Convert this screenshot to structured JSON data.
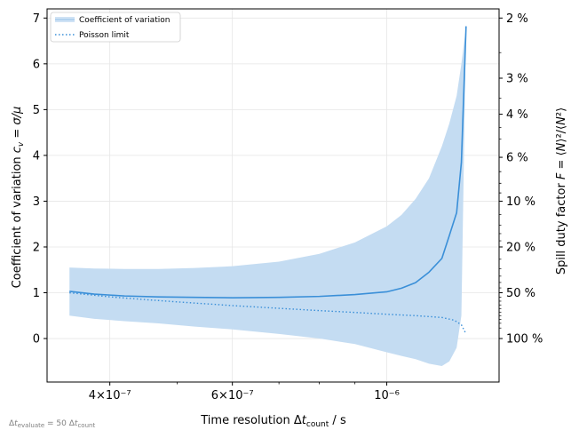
{
  "chart_data": {
    "type": "line",
    "xscale": "log",
    "xlim": [
      3.25e-07,
      1.45e-06
    ],
    "ylim": [
      -0.95,
      7.2
    ],
    "xlabel": "Time resolution Δt_count / s",
    "ylabel": "Coefficient of variation c_v = σ/μ",
    "ylabel2": "Spill duty factor F = ⟨N⟩²/⟨N²⟩",
    "footnote": "Δt_evaluate = 50 Δt_count",
    "x_ticks": [
      {
        "value": 4e-07,
        "label": "4×10⁻⁷"
      },
      {
        "value": 6e-07,
        "label": "6×10⁻⁷"
      },
      {
        "value": 1e-06,
        "label": "10⁻⁶"
      }
    ],
    "y_ticks": [
      0,
      1,
      2,
      3,
      4,
      5,
      6,
      7
    ],
    "y2_ticks": [
      {
        "label": "2 %",
        "F": 0.02
      },
      {
        "label": "3 %",
        "F": 0.03
      },
      {
        "label": "4 %",
        "F": 0.04
      },
      {
        "label": "6 %",
        "F": 0.06
      },
      {
        "label": "10 %",
        "F": 0.1
      },
      {
        "label": "20 %",
        "F": 0.2
      },
      {
        "label": "50 %",
        "F": 0.5
      },
      {
        "label": "100 %",
        "F": 1.0
      }
    ],
    "grid": true,
    "legend_position": "upper-left",
    "series": [
      {
        "name": "Coefficient of variation",
        "style": "solid",
        "color": "#3a8fd8",
        "band_color": "#c4dcf2",
        "x": [
          3.5e-07,
          3.8e-07,
          4.2e-07,
          4.7e-07,
          5.3e-07,
          6e-07,
          7e-07,
          8e-07,
          9e-07,
          1e-06,
          1.05e-06,
          1.1e-06,
          1.15e-06,
          1.2e-06,
          1.23e-06,
          1.26e-06,
          1.28e-06,
          1.3e-06
        ],
        "y": [
          1.03,
          0.97,
          0.93,
          0.91,
          0.9,
          0.89,
          0.9,
          0.92,
          0.96,
          1.02,
          1.1,
          1.22,
          1.45,
          1.75,
          2.25,
          2.75,
          3.85,
          6.82
        ],
        "band_upper": [
          1.55,
          1.53,
          1.52,
          1.52,
          1.54,
          1.58,
          1.68,
          1.85,
          2.1,
          2.45,
          2.7,
          3.05,
          3.5,
          4.2,
          4.7,
          5.3,
          6.0,
          6.82
        ],
        "band_lower": [
          0.5,
          0.43,
          0.38,
          0.33,
          0.26,
          0.2,
          0.1,
          0.0,
          -0.12,
          -0.3,
          -0.38,
          -0.45,
          -0.55,
          -0.6,
          -0.5,
          -0.2,
          0.5,
          6.82
        ]
      },
      {
        "name": "Poisson limit",
        "style": "dotted",
        "color": "#3a8fd8",
        "x": [
          3.5e-07,
          4e-07,
          4.5e-07,
          5e-07,
          6e-07,
          7e-07,
          8e-07,
          9e-07,
          1e-06,
          1.1e-06,
          1.2e-06,
          1.25e-06,
          1.28e-06,
          1.3e-06
        ],
        "y": [
          1.0,
          0.91,
          0.85,
          0.8,
          0.72,
          0.66,
          0.61,
          0.57,
          0.53,
          0.5,
          0.46,
          0.4,
          0.3,
          0.1
        ]
      }
    ]
  }
}
